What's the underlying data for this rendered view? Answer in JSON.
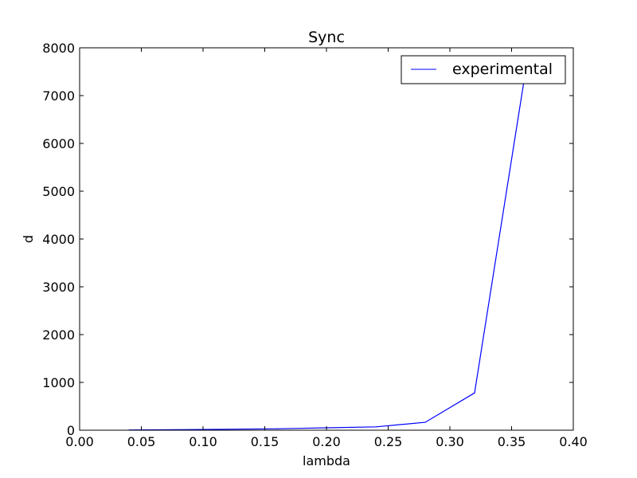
{
  "chart_data": {
    "type": "line",
    "title": "Sync",
    "xlabel": "lambda",
    "ylabel": "d",
    "xlim": [
      0.0,
      0.4
    ],
    "ylim": [
      0,
      8000
    ],
    "xticks": [
      "0.00",
      "0.05",
      "0.10",
      "0.15",
      "0.20",
      "0.25",
      "0.30",
      "0.35",
      "0.40"
    ],
    "yticks": [
      "0",
      "1000",
      "2000",
      "3000",
      "4000",
      "5000",
      "6000",
      "7000",
      "8000"
    ],
    "grid": false,
    "legend_position": "top-right",
    "series": [
      {
        "name": "experimental",
        "color": "#0000ff",
        "x": [
          0.04,
          0.08,
          0.12,
          0.16,
          0.2,
          0.24,
          0.28,
          0.32,
          0.36
        ],
        "y": [
          5,
          10,
          20,
          30,
          50,
          70,
          165,
          780,
          7300
        ]
      }
    ]
  }
}
